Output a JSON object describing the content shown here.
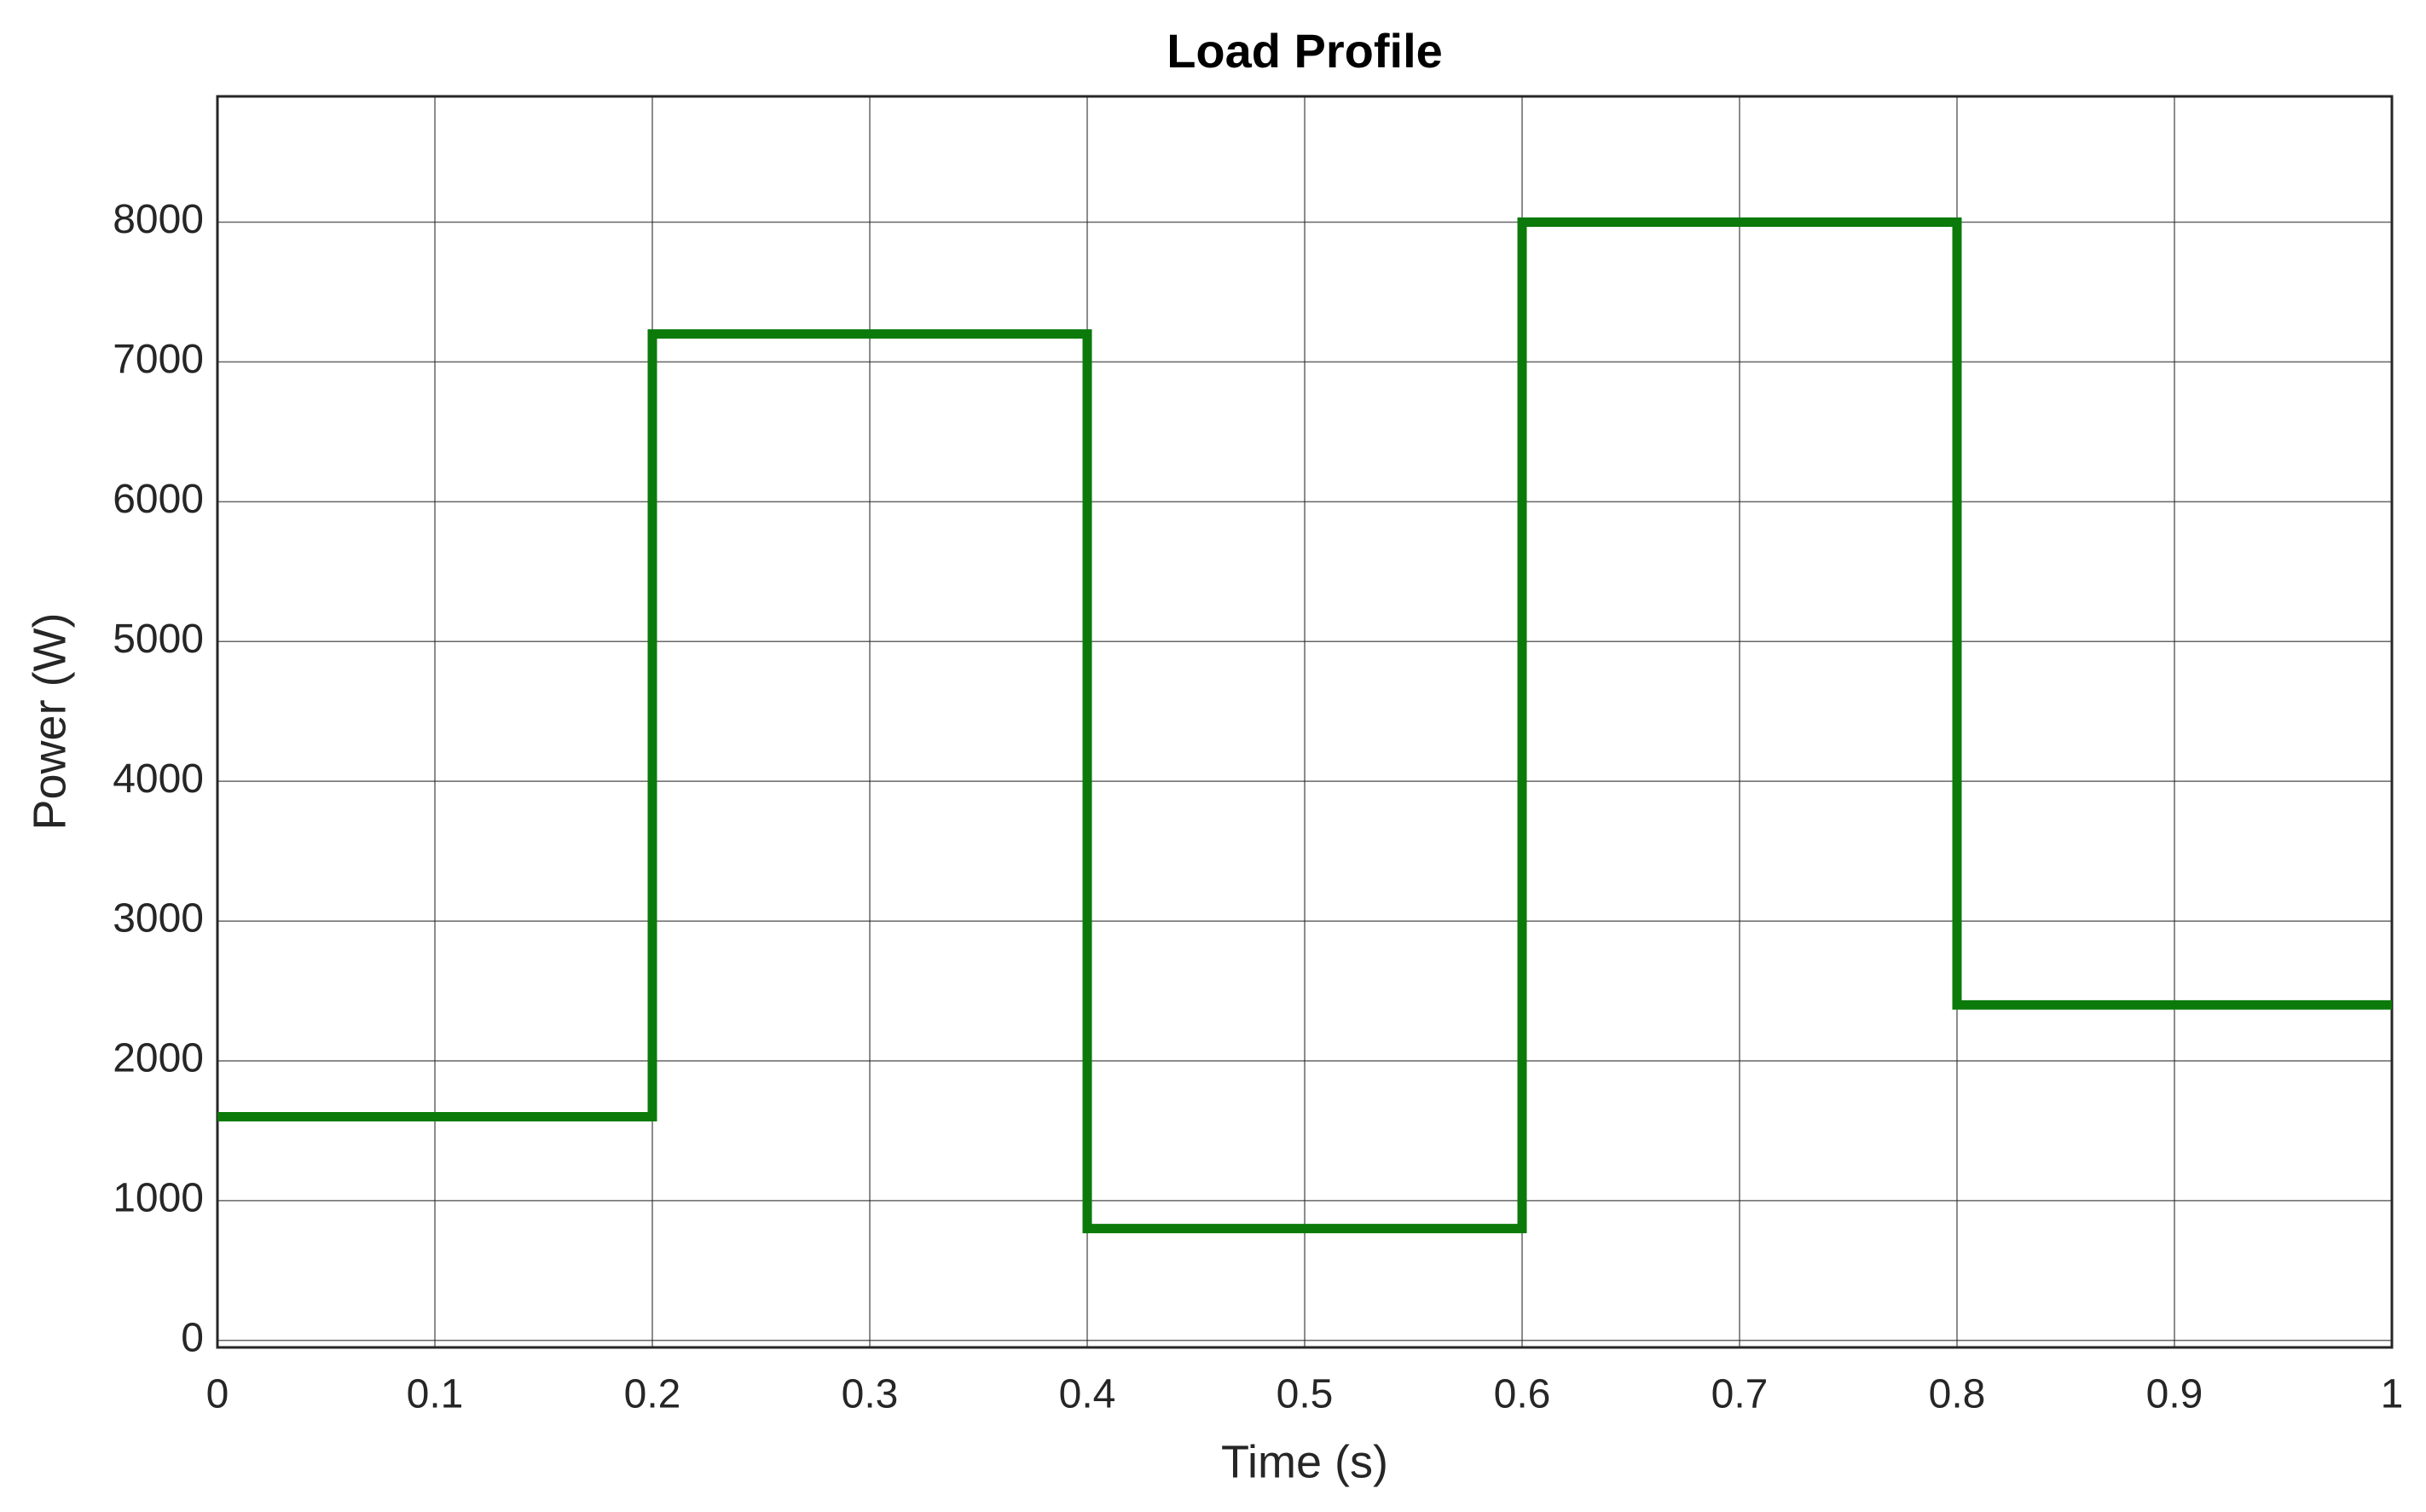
{
  "chart_data": {
    "type": "line",
    "title": "Load Profile",
    "x_label": "Time (s)",
    "y_label": "Power (W)",
    "x": [
      0,
      0.2,
      0.2,
      0.4,
      0.4,
      0.6,
      0.6,
      0.8,
      0.8,
      1
    ],
    "series": [
      {
        "color": "#0b7a0b",
        "values": [
          1600,
          1600,
          7200,
          7200,
          800,
          800,
          8000,
          8000,
          2400,
          2400
        ]
      }
    ],
    "xlim": [
      0,
      1
    ],
    "xticks": [
      0,
      0.1,
      0.2,
      0.3,
      0.4,
      0.5,
      0.6,
      0.7,
      0.8,
      0.9,
      1
    ],
    "ylim": [
      -50,
      8900
    ],
    "yticks": [
      0,
      1000,
      2000,
      3000,
      4000,
      5000,
      6000,
      7000,
      8000
    ],
    "grid": true
  }
}
